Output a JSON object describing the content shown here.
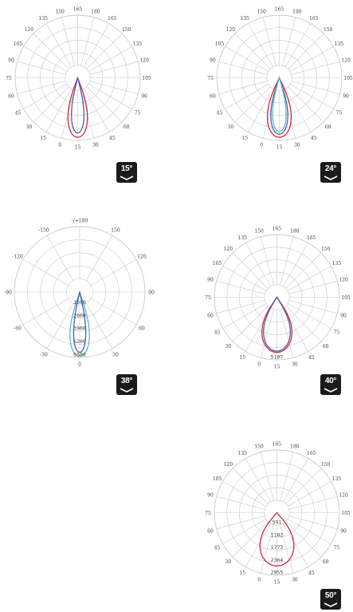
{
  "colors": {
    "grid": "#c9c9c9",
    "label": "#444444",
    "red": "#d2283a",
    "blue": "#4a5fb0",
    "cyan": "#58b9c9",
    "badge_bg": "#1b1b1b"
  },
  "icons": {
    "badge_chevron": "chevron-down-icon"
  },
  "charts": [
    {
      "id": "d15",
      "badge": "15°",
      "angle_labels": [
        "165",
        "180",
        "165",
        "150",
        "135",
        "120",
        "105",
        "90",
        "75",
        "60",
        "45",
        "30",
        "15",
        "0",
        "15",
        "30",
        "45",
        "60",
        "75",
        "90",
        "105",
        "120",
        "135",
        "150"
      ],
      "radial_labels": [
        "",
        "",
        "",
        "",
        ""
      ],
      "curves": [
        {
          "color": "red",
          "width_deg": 13,
          "extent": 0.95
        },
        {
          "color": "blue",
          "width_deg": 9,
          "extent": 0.88
        }
      ]
    },
    {
      "id": "d24",
      "badge": "24°",
      "angle_labels": [
        "165",
        "180",
        "165",
        "150",
        "135",
        "120",
        "105",
        "90",
        "75",
        "60",
        "45",
        "30",
        "15",
        "0",
        "15",
        "30",
        "45",
        "60",
        "75",
        "90",
        "105",
        "120",
        "135",
        "150"
      ],
      "radial_labels": [
        "",
        "",
        "",
        "",
        ""
      ],
      "curves": [
        {
          "color": "red",
          "width_deg": 16,
          "extent": 0.95
        },
        {
          "color": "blue",
          "width_deg": 12,
          "extent": 0.9
        },
        {
          "color": "cyan",
          "width_deg": 10,
          "extent": 0.86
        }
      ]
    },
    {
      "id": "d38",
      "badge": "38°",
      "angle_labels": [
        "-/+180",
        "150",
        "120",
        "90",
        "60",
        "30",
        "0",
        "-30",
        "-60",
        "-90",
        "-120",
        "-150"
      ],
      "radial_labels": [
        "1300",
        "2600",
        "3900",
        "5200",
        "6500"
      ],
      "curves": [
        {
          "color": "cyan",
          "width_deg": 12,
          "extent": 0.98
        },
        {
          "color": "blue",
          "width_deg": 8,
          "extent": 0.92
        }
      ]
    },
    {
      "id": "d40",
      "badge": "40°",
      "angle_labels": [
        "165",
        "180",
        "165",
        "150",
        "135",
        "120",
        "105",
        "90",
        "75",
        "60",
        "45",
        "30",
        "15",
        "0",
        "15",
        "30",
        "45",
        "60",
        "75",
        "90",
        "105",
        "120",
        "135",
        "150"
      ],
      "radial_labels": [
        "",
        "",
        "",
        "",
        "5107"
      ],
      "curves": [
        {
          "color": "red",
          "width_deg": 22,
          "extent": 0.88
        },
        {
          "color": "blue",
          "width_deg": 20,
          "extent": 0.86
        }
      ]
    },
    {
      "id": "d50",
      "badge": "50°",
      "angle_labels": [
        "165",
        "180",
        "165",
        "150",
        "135",
        "120",
        "105",
        "90",
        "75",
        "60",
        "45",
        "30",
        "15",
        "0",
        "15",
        "30",
        "45",
        "60",
        "75",
        "90",
        "105",
        "120",
        "135",
        "150"
      ],
      "radial_labels": [
        "591",
        "1182",
        "1773",
        "2364",
        "2955"
      ],
      "curves": [
        {
          "color": "red",
          "width_deg": 26,
          "extent": 0.85
        }
      ]
    }
  ]
}
